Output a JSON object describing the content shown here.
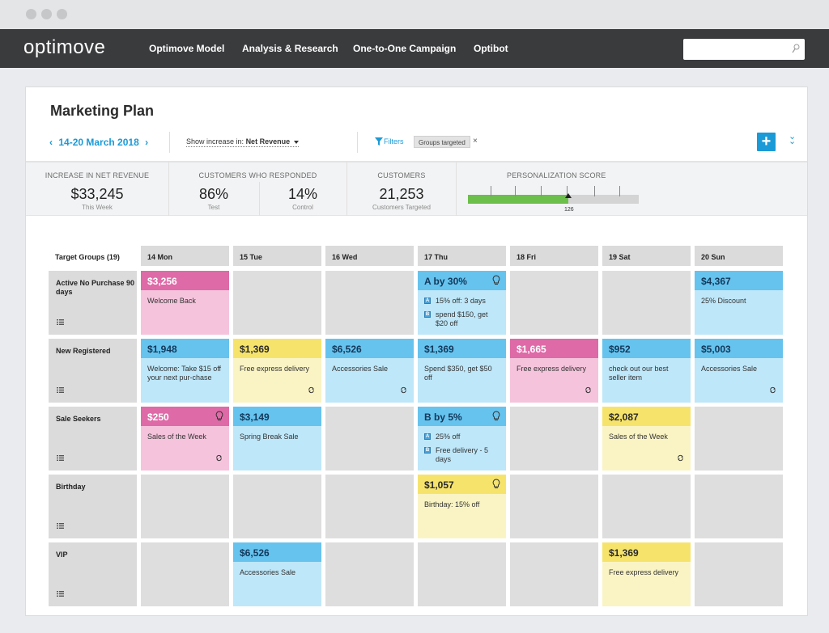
{
  "app": {
    "logo": "optimove"
  },
  "nav": {
    "items": [
      "Optimove Model",
      "Analysis & Research",
      "One-to-One Campaign",
      "Optibot"
    ],
    "search_placeholder": ""
  },
  "page": {
    "title": "Marketing Plan",
    "date_range": "14-20 March 2018",
    "show_increase_label": "Show increase in:",
    "show_increase_value": "Net Revenue",
    "filters_label": "Filters",
    "filter_chip": "Groups targeted",
    "filter_remove": "×",
    "add_label": "+"
  },
  "stats": {
    "net_revenue": {
      "label": "INCREASE IN NET REVENUE",
      "value": "$33,245",
      "sub": "This Week"
    },
    "responded": {
      "label": "CUSTOMERS WHO RESPONDED",
      "test_value": "86%",
      "test_sub": "Test",
      "control_value": "14%",
      "control_sub": "Control"
    },
    "customers": {
      "label": "CUSTOMERS",
      "value": "21,253",
      "sub": "Customers Targeted"
    },
    "personalization": {
      "label": "PERSONALIZATION SCORE",
      "value": "126",
      "fill_fraction": 0.59
    }
  },
  "grid": {
    "corner_header": "Target Groups (19)",
    "days": [
      "14 Mon",
      "15 Tue",
      "16 Wed",
      "17 Thu",
      "18 Fri",
      "19 Sat",
      "20 Sun"
    ],
    "groups": [
      {
        "label": "Active No Purchase 90 days"
      },
      {
        "label": "New Registered"
      },
      {
        "label": "Sale Seekers"
      },
      {
        "label": "Birthday"
      },
      {
        "label": "VIP"
      }
    ],
    "tiles": {
      "r0c0": {
        "amount": "$3,256",
        "text": "Welcome Back"
      },
      "r0c3": {
        "amount": "A by 30%",
        "opt_a": "15% off: 3 days",
        "opt_b": "spend $150, get $20 off",
        "badge_a": "A",
        "badge_b": "B"
      },
      "r0c6": {
        "amount": "$4,367",
        "text": "25% Discount"
      },
      "r1c0": {
        "amount": "$1,948",
        "text": "Welcome: Take $15 off your next pur-chase"
      },
      "r1c1": {
        "amount": "$1,369",
        "text": "Free express delivery"
      },
      "r1c2": {
        "amount": "$6,526",
        "text": "Accessories Sale"
      },
      "r1c3": {
        "amount": "$1,369",
        "text": "Spend $350, get $50 off"
      },
      "r1c4": {
        "amount": "$1,665",
        "text": "Free express delivery"
      },
      "r1c5": {
        "amount": "$952",
        "text": "check out our best seller item"
      },
      "r1c6": {
        "amount": "$5,003",
        "text": "Accessories Sale"
      },
      "r2c0": {
        "amount": "$250",
        "text": "Sales of the Week"
      },
      "r2c1": {
        "amount": "$3,149",
        "text": "Spring Break Sale"
      },
      "r2c3": {
        "amount": "B by 5%",
        "opt_a": "25% off",
        "opt_b": "Free delivery - 5 days",
        "badge_a": "A",
        "badge_b": "B"
      },
      "r2c5": {
        "amount": "$2,087",
        "text": "Sales of the Week"
      },
      "r3c3": {
        "amount": "$1,057",
        "text": "Birthday: 15% off"
      },
      "r4c1": {
        "amount": "$6,526",
        "text": "Accessories Sale"
      },
      "r4c5": {
        "amount": "$1,369",
        "text": "Free express delivery"
      }
    }
  },
  "colors": {
    "accent": "#1a9ad6",
    "pink": "#de6aa7",
    "blue": "#66c3ee",
    "yellow": "#f6e36c",
    "score_fill": "#6cbf4a"
  }
}
